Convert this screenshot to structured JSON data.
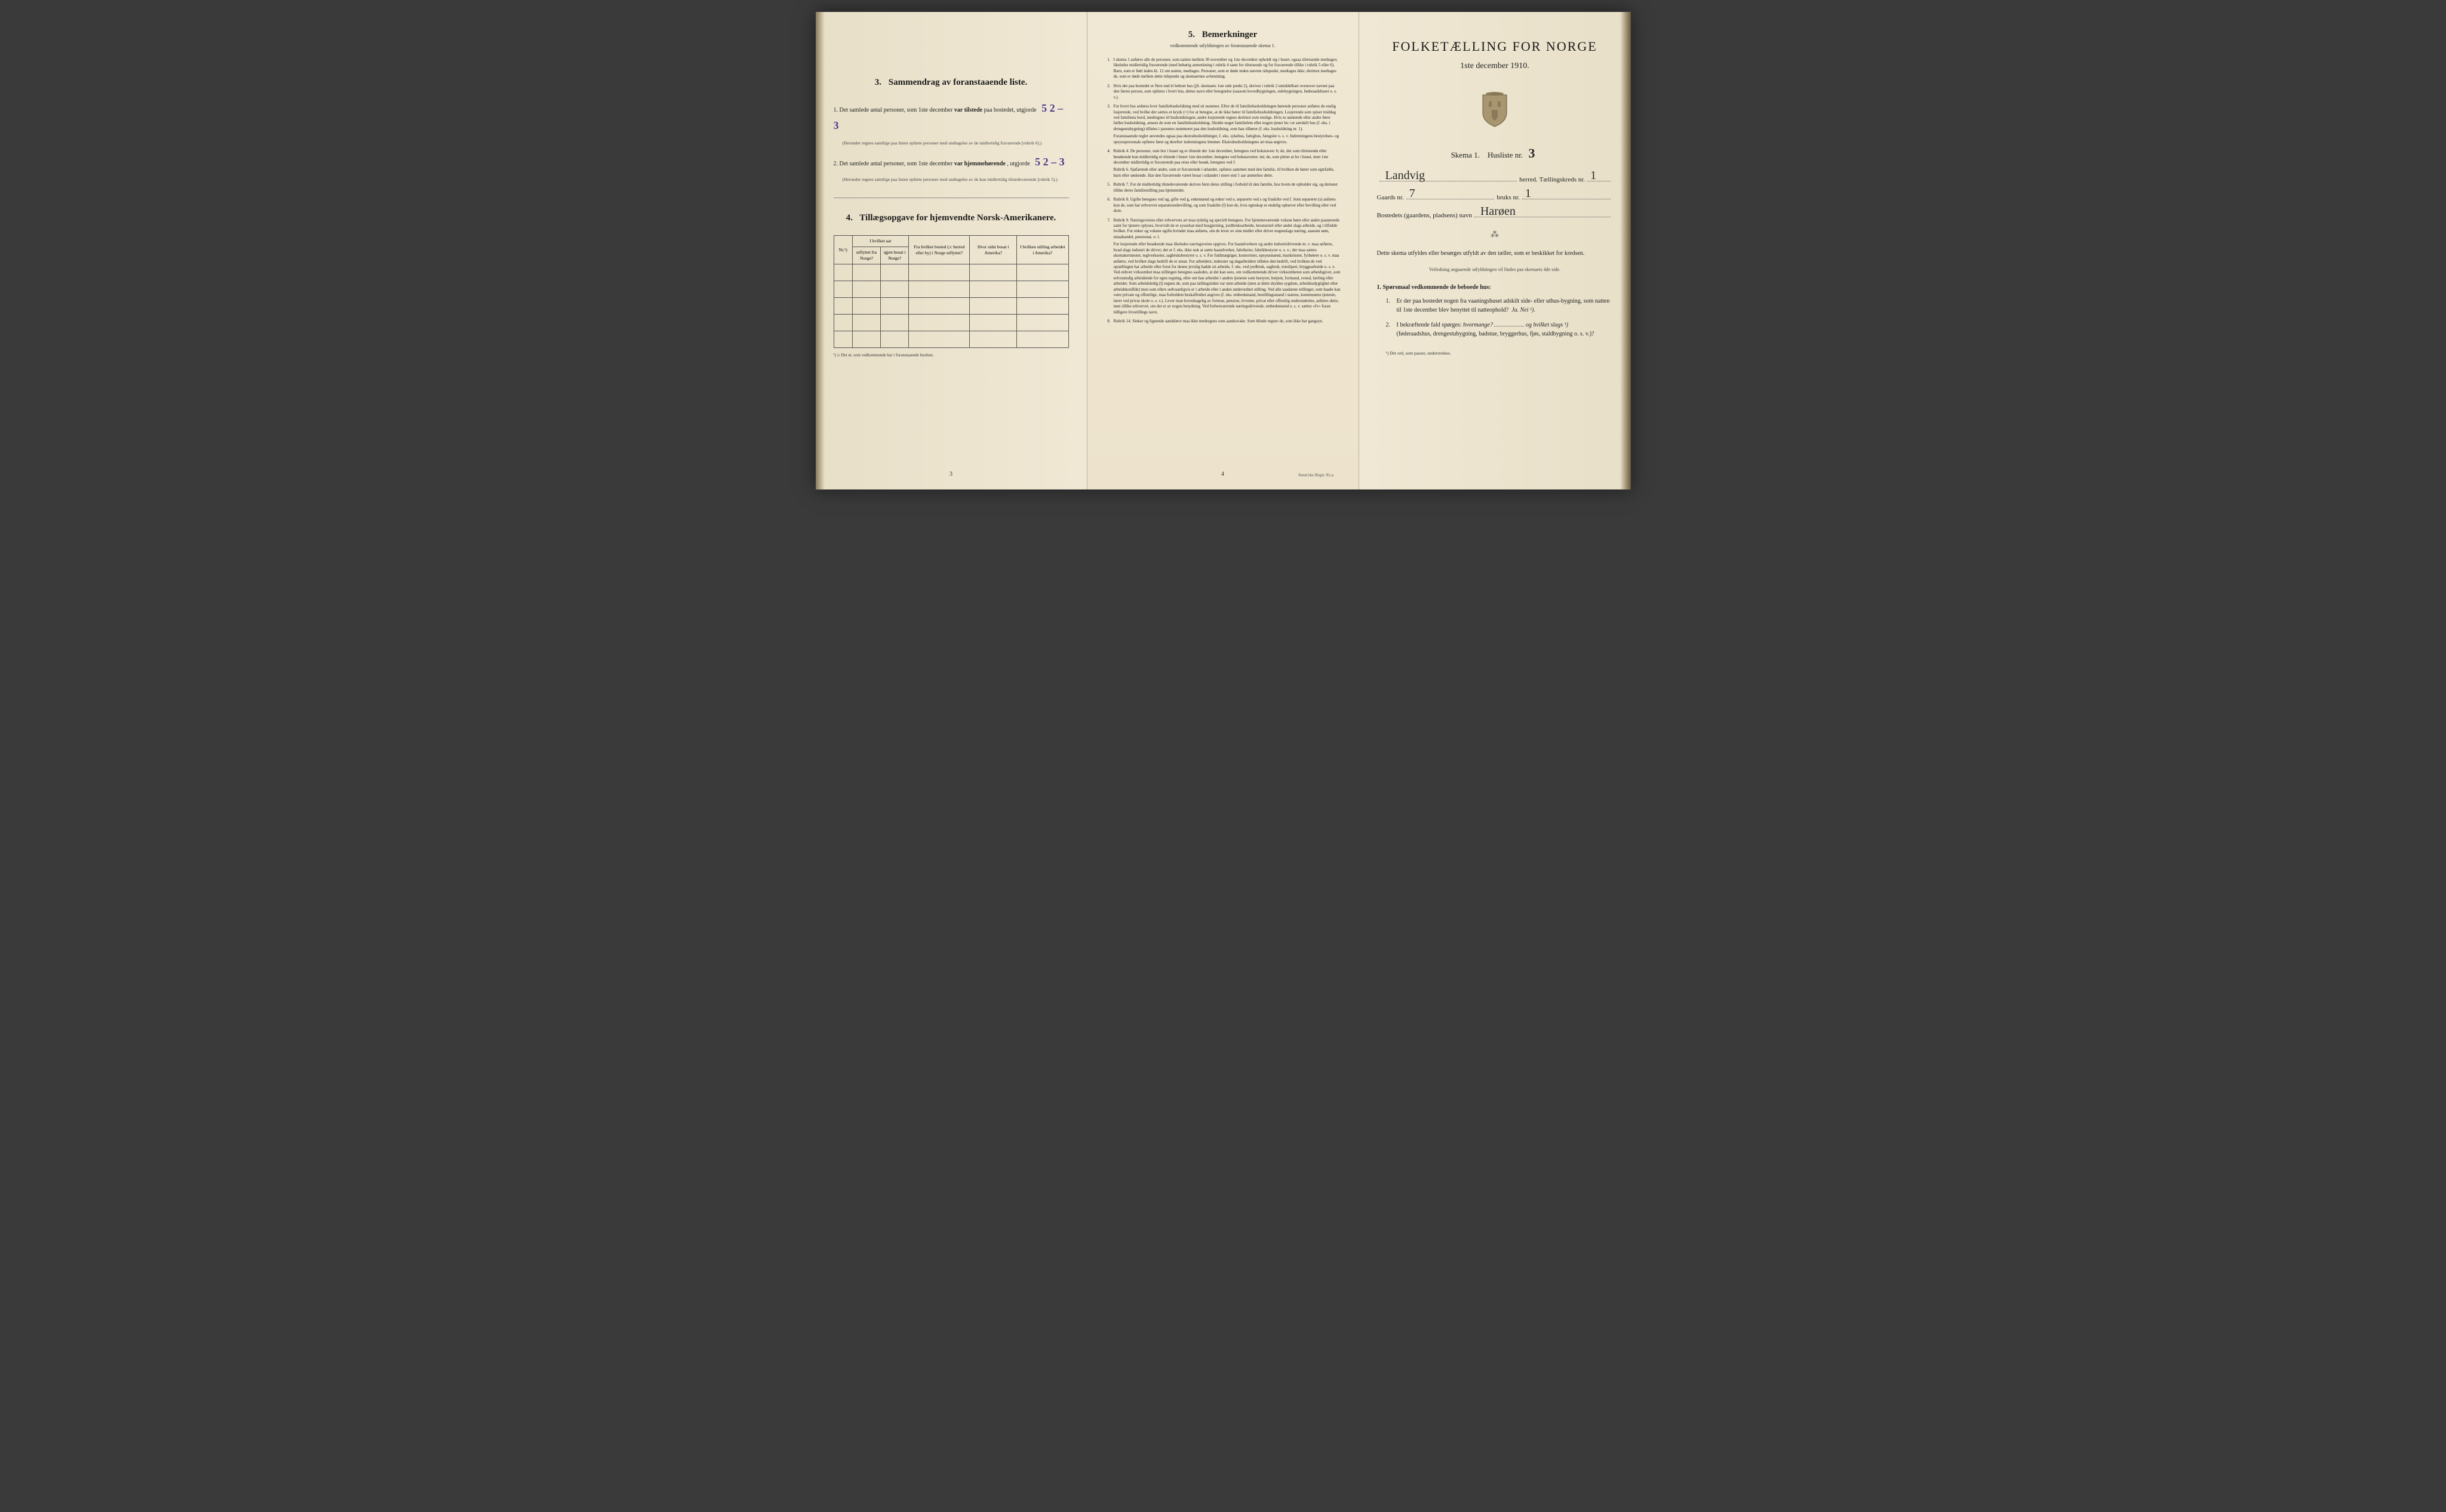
{
  "page1": {
    "section3": {
      "number": "3.",
      "title": "Sammendrag av foranstaaende liste.",
      "item1": {
        "num": "1.",
        "text_before": "Det samlede antal personer, som 1ste december",
        "bold": "var tilstede",
        "text_after": "paa bostedet, utgjorde",
        "handwritten": "5    2 – 3",
        "fine": "(Herunder regnes samtlige paa listen opførte personer med undtagelse av de midlertidig fraværende [rubrik 6].)"
      },
      "item2": {
        "num": "2.",
        "text_before": "Det samlede antal personer, som 1ste december",
        "bold": "var hjemmehørende",
        "text_after": ", utgjorde",
        "handwritten": "5    2 – 3",
        "fine": "(Herunder regnes samtlige paa listen opførte personer med undtagelse av de kun midlertidig tilstedeværende [rubrik 5].)"
      }
    },
    "section4": {
      "number": "4.",
      "title": "Tillægsopgave for hjemvendte Norsk-Amerikanere.",
      "table": {
        "headers": {
          "col1": "Nr.¹)",
          "col2a": "I hvilket aar",
          "col2b": "utflyttet fra Norge?",
          "col2c": "igjen bosat i Norge?",
          "col3": "Fra hvilket bosted (ɔ: herred eller by) i Norge utflyttet?",
          "col4": "Hvor sidst bosat i Amerika?",
          "col5": "I hvilken stilling arbeidet i Amerika?"
        },
        "rows": 5
      },
      "footnote": "¹) ɔ: Det nr. som vedkommende har i foranstaaende husliste."
    },
    "page_number": "3"
  },
  "page2": {
    "section5": {
      "number": "5.",
      "title": "Bemerkninger",
      "subtitle": "vedkommende utfyldningen av foranstaaende skema 1."
    },
    "remarks": [
      {
        "num": "1.",
        "text": "I skema 1 anføres alle de personer, som natten mellem 30 november og 1ste december opholdt sig i huset; ogsaa tilreisende medtages; likeledes midlertidig fraværende (med behørig anmerkning i rubrik 4 samt for tilreisende og for fraværende tillike i rubrik 5 eller 6). Barn, som er født inden kl. 12 om natten, medtages. Personer, som er døde inden nævnte tidspunkt, medtages ikke; derimot medtages de, som er døde mellem dette tidspunkt og skemaernes avhentning."
      },
      {
        "num": "2.",
        "text": "Hvis der paa bostedet er flere end ét beboet hus (jfr. skemaets 1ste side punkt 2), skrives i rubrik 2 umiddelbart ovenover navnet paa den første person, som opføres i hvert hus, dettes navn eller betegnelse (saasom hovedbygningen, sidebygningen, føderaadshuset o. s. v.)."
      },
      {
        "num": "3.",
        "text": "For hvert hus anføres hver familiehusholdning med sit nummer. Efter de til familiehusholdningen hørende personer anføres de enslig losjerende, ved hvilke der sættes et kryds (×) for at betegne, at de ikke hører til familiehusholdningen. Losjerende som spiser middag ved familiens bord, medregnes til husholdningen; andre losjerende regnes derimot som enslige. Hvis to søskende eller andre fører fælles husholdning, ansees de som en familiehusholdning. Skulde noget familielem eller nogen tjener bo i et særskilt hus (f. eks. i drengestubygning) tilføies i parentes nummeret paa den husholdning, som han tilhører (f. eks. husholdning nr. 1).",
        "sub": "Foranstaaende regler anvendes ogsaa paa ekstrahusholdninger, f. eks. sykehus, fattighus, fængsler o. s. v. Indretningens bestyrelses- og opsynspersonale opføres først og derefter indretningens lemmer. Ekstrahusholdningens art maa angives."
      },
      {
        "num": "4.",
        "text": "Rubrik 4. De personer, som bor i huset og er tilstede der 1ste december, betegnes ved bokstaven: b; de, der som tilreisende eller besøkende kun midlertidig er tilstede i huset 1ste december, betegnes ved bokstaverne: mt; de, som pleier at bo i huset, men 1ste december midlertidig er fraværende paa reise eller besøk, betegnes ved f.",
        "sub": "Rubrik 6. Sjøfarende eller andre, som er fraværende i utlandet, opføres sammen med den familie, til hvilken de hører som egtefælle, barn eller søskende. Har den fraværende været bosat i utlandet i mere end 1 aar anmerkes dette."
      },
      {
        "num": "5.",
        "text": "Rubrik 7. For de midlertidig tilstedeværende skrives først deres stilling i forhold til den familie, hos hvem de opholder sig, og dernæst tillike deres familiestilling paa hjemstedet."
      },
      {
        "num": "6.",
        "text": "Rubrik 8. Ugifte betegnes ved ug, gifte ved g, enkemænd og enker ved e, separerte ved s og fraskilte ved f. Som separerte (s) anføres kun de, som har erhvervet separationsbevilling, og som fraskilte (f) kun de, hvis egteskap er endelig ophævet efter bevilling eller ved dom."
      },
      {
        "num": "7.",
        "text": "Rubrik 9. Næringsveiens eller erhvervets art maa tydelig og specielt betegnes. For hjemmeværende voksne børn eller andre paarørende samt for tjenere oplyses, hvorvidt de er sysselsat med husgjerning, jordbruksarbeide, kreaturstel eller andet slags arbeide, og i tilfælde hvilket. For enker og voksne ugifte kvinder maa anføres, om de lever av sine midler eller driver nogenslags næring, saasom søm, smaahandel, pensionat, o. l.",
        "sub": "For losjerende eller besøkende maa likeledes næringsveien opgives. For haandverkere og andre industridrivende m. v. maa anføres, hvad slags industri de driver; det er f. eks. ikke nok at sætte haandverker, fabrikeier, fabrikbestyrer o. s. v.; der maa sættes skomakermester, teglverkseier, sagbruksbestyrer o. s. v. For fuldmægtiger, kontorister, opsynsmænd, maskinister, fyrbøtere o. s. v. maa anføres, ved hvilket slags bedrift de er ansat. For arbeidere, inderster og dagarbeidere tilføies den bedrift, ved hvilken de ved optællingen har arbeide eller forut for denne jevnlig hadde sit arbeide, f. eks. ved jordbruk, sagbruk, træsliperi, bryggearbeide o. s. v. Ved enhver virksomhet maa stillingen betegnes saaledes, at det kan sees, om vedkommende driver virksomheten som arbeidsgiver, som selvstændig arbeidende for egen regning, eller om han arbeider i andres tjeneste som bestyrer, betjent, formand, svend, lærling eller arbeider. Som arbeidsledig (l) regnes de, som paa tællingstiden var uten arbeide (uten at dette skyldes sygdom, arbeidsudygtighet eller arbeidskonflikt) men som ellers sedvaanligvis er i arbeide eller i anden underordnet stilling. Ved alle saadanne stillinger, som baade kan være private og offentlige, maa forholdets beskaffenhet angives (f. eks. embedsmand, bestillingsmand i statens, kommunens tjeneste, lærer ved privat skole o. s. v.). Lever man hovedsagelig av formue, pension, livrente, privat eller offentlig understøttelse, anføres dette, men tillike erhvervet, om det er av nogen betydning. Ved forhenværende næringsdrivende, embedsmænd o. s. v. sættes «fv» foran tidligere livsstillings navn."
      },
      {
        "num": "8.",
        "text": "Rubrik 14. Sinker og lignende aandsløve maa ikke medregnes som aandssvake. Som blinde regnes de, som ikke har gangsyn."
      }
    ],
    "page_number": "4",
    "printer": "Steen'ske Bogtr. Kr.a."
  },
  "page3": {
    "title": "FOLKETÆLLING FOR NORGE",
    "date": "1ste december 1910.",
    "schema_label": "Skema 1.",
    "husliste_label": "Husliste nr.",
    "husliste_nr": "3",
    "herred_value": "Landvig",
    "herred_label": "herred.",
    "tkreds_label": "Tællingskreds nr.",
    "tkreds_nr": "1",
    "gaards_label": "Gaards nr.",
    "gaards_nr": "7",
    "bruks_label": "bruks nr.",
    "bruks_nr": "1",
    "bosted_label": "Bostedets (gaardens, pladsens) navn",
    "bosted_value": "Harøen",
    "instruction": "Dette skema utfyldes eller besørges utfyldt av den tæller, som er beskikket for kredsen.",
    "instruction_small": "Veiledning angaaende utfyldningen vil findes paa skemaets 4de side.",
    "q_header": "1. Spørsmaal vedkommende de beboede hus:",
    "q1": {
      "num": "1.",
      "text": "Er der paa bostedet nogen fra vaaningshuset adskilt side- eller uthus-bygning, som natten til 1ste december blev benyttet til natteophold?",
      "answer": "Ja.  Nei ¹)."
    },
    "q2": {
      "num": "2.",
      "text_a": "I bekræftende fald spørges:",
      "text_b": "hvormange?",
      "text_c": "og hvilket slags ¹)",
      "text_d": "(føderaadshus, drengestubygning, badstue, bryggerhus, fjøs, staldbygning o. s. v.)?"
    },
    "footnote": "¹) Det ord, som passer, understrekes."
  },
  "colors": {
    "paper": "#f0e8d4",
    "paper_edge": "#e8dfc8",
    "text": "#1a1a1a",
    "text_light": "#444444",
    "handwriting_blue": "#4a3a8a",
    "handwriting_black": "#2a2a2a",
    "border": "#555555"
  }
}
